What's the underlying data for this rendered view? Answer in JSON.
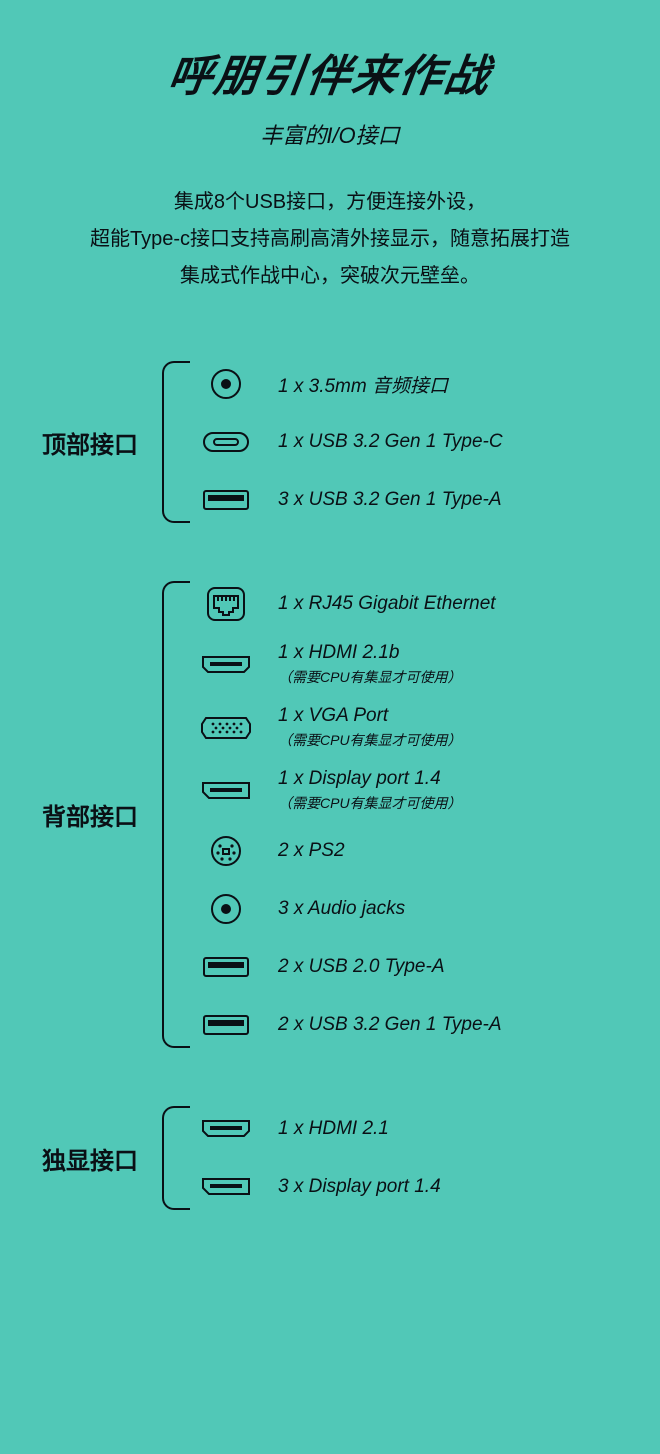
{
  "colors": {
    "bg": "#51c8b7",
    "fg": "#0a1015"
  },
  "headline": "呼朋引伴来作战",
  "subhead": "丰富的I/O接口",
  "desc_lines": [
    "集成8个USB接口，方便连接外设，",
    "超能Type-c接口支持高刷高清外接显示，随意拓展打造",
    "集成式作战中心，突破次元壁垒。"
  ],
  "sections": [
    {
      "title": "顶部接口",
      "items": [
        {
          "icon": "audio",
          "label": "1 x 3.5mm 音频接口"
        },
        {
          "icon": "typec",
          "label": "1 x USB 3.2 Gen 1 Type-C"
        },
        {
          "icon": "usba",
          "label": "3 x USB 3.2 Gen 1 Type-A"
        }
      ]
    },
    {
      "title": "背部接口",
      "items": [
        {
          "icon": "rj45",
          "label": "1 x RJ45 Gigabit Ethernet"
        },
        {
          "icon": "hdmi",
          "label": "1 x HDMI 2.1b",
          "note": "（需要CPU有集显才可使用）"
        },
        {
          "icon": "vga",
          "label": "1 x VGA Port",
          "note": "（需要CPU有集显才可使用）"
        },
        {
          "icon": "dp",
          "label": "1 x Display port 1.4",
          "note": "（需要CPU有集显才可使用）"
        },
        {
          "icon": "ps2",
          "label": "2 x PS2"
        },
        {
          "icon": "audio",
          "label": "3 x Audio jacks"
        },
        {
          "icon": "usba",
          "label": "2 x USB 2.0 Type-A"
        },
        {
          "icon": "usba",
          "label": "2 x USB 3.2 Gen 1 Type-A"
        }
      ]
    },
    {
      "title": "独显接口",
      "items": [
        {
          "icon": "hdmi",
          "label": "1 x HDMI 2.1"
        },
        {
          "icon": "dp",
          "label": "3 x Display port 1.4"
        }
      ]
    }
  ]
}
